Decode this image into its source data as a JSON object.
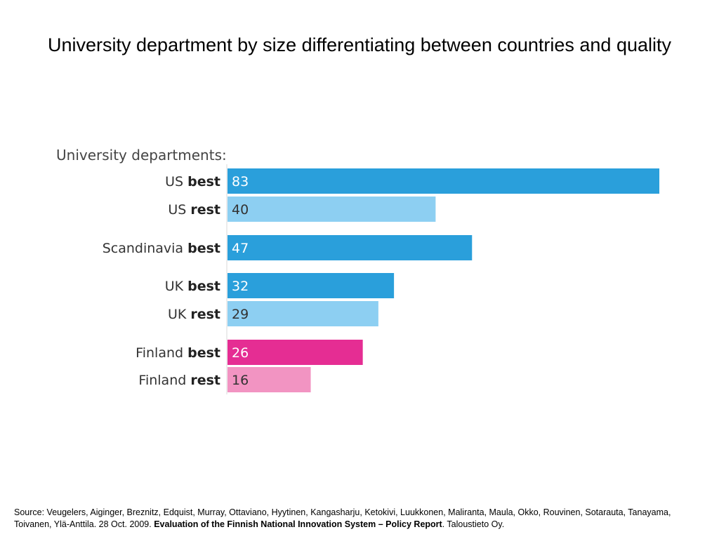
{
  "slide": {
    "title": "University department by size differentiating between countries and quality"
  },
  "chart_data": {
    "type": "bar",
    "orientation": "horizontal",
    "header": "University departments:",
    "bars": [
      {
        "region": "US",
        "quality": "best",
        "value": 83,
        "color": "#2a9fdb",
        "label_color": "#ffffff"
      },
      {
        "region": "US",
        "quality": "rest",
        "value": 40,
        "color": "#8dcff2",
        "label_color": "#333333"
      },
      {
        "region": "Scandinavia",
        "quality": "best",
        "value": 47,
        "color": "#2a9fdb",
        "label_color": "#ffffff"
      },
      {
        "region": "UK",
        "quality": "best",
        "value": 32,
        "color": "#2a9fdb",
        "label_color": "#ffffff"
      },
      {
        "region": "UK",
        "quality": "rest",
        "value": 29,
        "color": "#8dcff2",
        "label_color": "#333333"
      },
      {
        "region": "Finland",
        "quality": "best",
        "value": 26,
        "color": "#e52d93",
        "label_color": "#ffffff"
      },
      {
        "region": "Finland",
        "quality": "rest",
        "value": 16,
        "color": "#f294c2",
        "label_color": "#333333"
      }
    ],
    "grid": false,
    "legend": "none"
  },
  "source": {
    "prefix": "Source: Veugelers, Aiginger, Breznitz, Edquist, Murray, Ottaviano, Hyytinen, Kangasharju, Ketokivi, Luukkonen, Maliranta, Maula, Okko, Rouvinen, Sotarauta, Tanayama, Toivanen, Ylä-Anttila. 28 Oct. 2009.",
    "report_title": "Evaluation of the Finnish National Innovation System – Policy Report",
    "publisher": ". Taloustieto Oy."
  }
}
